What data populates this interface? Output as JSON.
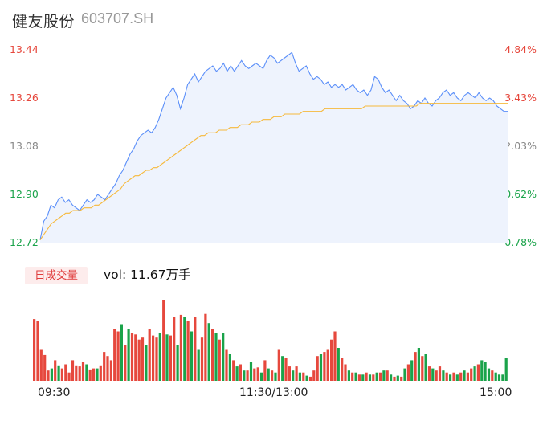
{
  "header": {
    "name": "健友股份",
    "code": "603707.SH"
  },
  "volume": {
    "tab_label": "日成交量",
    "vol_text": "vol: 11.67万手"
  },
  "colors": {
    "price_line": "#5b8ff9",
    "avg_line": "#f6b93b",
    "up": "#e6483d",
    "down": "#1aa34a",
    "neutral": "#888888",
    "area_fill": "#eef3fd"
  },
  "chart_data": [
    {
      "type": "line",
      "y_range": [
        12.72,
        13.44
      ],
      "pct_range": [
        -0.78,
        4.84
      ],
      "y_ticks": [
        {
          "price": "13.44",
          "pct": "4.84%",
          "dir": "up"
        },
        {
          "price": "13.26",
          "pct": "3.43%",
          "dir": "up"
        },
        {
          "price": "13.08",
          "pct": "2.03%",
          "dir": "neutral"
        },
        {
          "price": "12.90",
          "pct": "0.62%",
          "dir": "down"
        },
        {
          "price": "12.72",
          "pct": "-0.78%",
          "dir": "down"
        }
      ],
      "x_ticks": [
        "09:30",
        "11:30/13:00",
        "15:00"
      ],
      "series": [
        {
          "points": [
            12.73,
            12.8,
            12.82,
            12.86,
            12.85,
            12.88,
            12.89,
            12.87,
            12.88,
            12.86,
            12.85,
            12.84,
            12.86,
            12.88,
            12.87,
            12.88,
            12.9,
            12.89,
            12.88,
            12.9,
            12.92,
            12.94,
            12.97,
            12.99,
            13.02,
            13.05,
            13.07,
            13.1,
            13.12,
            13.13,
            13.14,
            13.13,
            13.15,
            13.18,
            13.22,
            13.26,
            13.28,
            13.3,
            13.27,
            13.22,
            13.26,
            13.31,
            13.33,
            13.35,
            13.32,
            13.34,
            13.36,
            13.37,
            13.38,
            13.36,
            13.37,
            13.39,
            13.36,
            13.38,
            13.36,
            13.38,
            13.4,
            13.38,
            13.37,
            13.38,
            13.39,
            13.38,
            13.37,
            13.4,
            13.42,
            13.41,
            13.39,
            13.4,
            13.41,
            13.42,
            13.43,
            13.39,
            13.36,
            13.37,
            13.38,
            13.35,
            13.33,
            13.34,
            13.33,
            13.31,
            13.32,
            13.3,
            13.31,
            13.3,
            13.31,
            13.29,
            13.3,
            13.31,
            13.29,
            13.28,
            13.29,
            13.27,
            13.29,
            13.34,
            13.33,
            13.3,
            13.28,
            13.29,
            13.27,
            13.25,
            13.27,
            13.25,
            13.24,
            13.22,
            13.23,
            13.25,
            13.24,
            13.26,
            13.24,
            13.23,
            13.25,
            13.26,
            13.28,
            13.29,
            13.27,
            13.28,
            13.26,
            13.25,
            13.27,
            13.28,
            13.27,
            13.26,
            13.28,
            13.26,
            13.25,
            13.26,
            13.25,
            13.23,
            13.22,
            13.21,
            13.21
          ]
        },
        {
          "points": [
            12.73,
            12.75,
            12.77,
            12.79,
            12.8,
            12.81,
            12.82,
            12.83,
            12.83,
            12.84,
            12.84,
            12.84,
            12.85,
            12.85,
            12.85,
            12.86,
            12.86,
            12.87,
            12.88,
            12.89,
            12.9,
            12.91,
            12.92,
            12.94,
            12.95,
            12.96,
            12.97,
            12.97,
            12.98,
            12.99,
            12.99,
            13.0,
            13.0,
            13.01,
            13.02,
            13.03,
            13.04,
            13.05,
            13.06,
            13.07,
            13.08,
            13.09,
            13.1,
            13.11,
            13.12,
            13.12,
            13.13,
            13.13,
            13.13,
            13.14,
            13.14,
            13.14,
            13.15,
            13.15,
            13.15,
            13.16,
            13.16,
            13.16,
            13.17,
            13.17,
            13.17,
            13.18,
            13.18,
            13.18,
            13.19,
            13.19,
            13.19,
            13.2,
            13.2,
            13.2,
            13.2,
            13.2,
            13.21,
            13.21,
            13.21,
            13.21,
            13.21,
            13.21,
            13.22,
            13.22,
            13.22,
            13.22,
            13.22,
            13.22,
            13.22,
            13.22,
            13.22,
            13.22,
            13.22,
            13.23,
            13.23,
            13.23,
            13.23,
            13.23,
            13.23,
            13.23,
            13.23,
            13.23,
            13.23,
            13.23,
            13.23,
            13.23,
            13.23,
            13.23,
            13.24,
            13.24,
            13.24,
            13.24,
            13.24,
            13.24,
            13.24,
            13.24,
            13.24,
            13.24,
            13.24,
            13.24,
            13.24,
            13.24,
            13.24,
            13.24,
            13.24,
            13.24,
            13.24,
            13.24,
            13.24,
            13.24,
            13.24,
            13.24,
            13.24
          ]
        }
      ]
    },
    {
      "type": "bar",
      "values": [
        60,
        58,
        30,
        25,
        10,
        12,
        20,
        15,
        12,
        16,
        8,
        20,
        15,
        14,
        18,
        16,
        11,
        12,
        12,
        15,
        28,
        24,
        20,
        50,
        48,
        55,
        35,
        50,
        46,
        45,
        40,
        42,
        35,
        50,
        44,
        42,
        46,
        78,
        45,
        44,
        62,
        35,
        64,
        62,
        58,
        48,
        62,
        30,
        42,
        65,
        56,
        50,
        46,
        40,
        46,
        30,
        26,
        20,
        14,
        16,
        10,
        10,
        18,
        12,
        13,
        8,
        20,
        12,
        10,
        8,
        30,
        24,
        22,
        14,
        10,
        14,
        8,
        8,
        5,
        4,
        10,
        24,
        26,
        28,
        30,
        40,
        48,
        32,
        22,
        16,
        10,
        8,
        8,
        6,
        6,
        8,
        6,
        6,
        8,
        8,
        10,
        10,
        6,
        4,
        5,
        4,
        12,
        16,
        20,
        28,
        32,
        24,
        26,
        14,
        12,
        10,
        14,
        10,
        8,
        6,
        8,
        6,
        8,
        10,
        8,
        12,
        14,
        16,
        20,
        18,
        12,
        10,
        8,
        6,
        6,
        22
      ],
      "colors": [
        "up",
        "up",
        "up",
        "up",
        "up",
        "down",
        "up",
        "down",
        "up",
        "up",
        "up",
        "up",
        "up",
        "up",
        "up",
        "down",
        "up",
        "up",
        "down",
        "up",
        "up",
        "up",
        "up",
        "up",
        "up",
        "down",
        "up",
        "down",
        "up",
        "up",
        "up",
        "up",
        "down",
        "up",
        "up",
        "up",
        "down",
        "up",
        "down",
        "up",
        "up",
        "down",
        "up",
        "down",
        "up",
        "down",
        "up",
        "down",
        "up",
        "up",
        "down",
        "up",
        "down",
        "up",
        "down",
        "up",
        "down",
        "up",
        "down",
        "up",
        "down",
        "up",
        "down",
        "up",
        "up",
        "down",
        "up",
        "down",
        "up",
        "down",
        "up",
        "down",
        "up",
        "up",
        "down",
        "up",
        "down",
        "up",
        "down",
        "up",
        "up",
        "up",
        "down",
        "up",
        "up",
        "up",
        "up",
        "down",
        "up",
        "up",
        "down",
        "up",
        "down",
        "up",
        "down",
        "up",
        "down",
        "up",
        "down",
        "up",
        "down",
        "up",
        "down",
        "up",
        "down",
        "up",
        "down",
        "up",
        "down",
        "up",
        "down",
        "up",
        "down",
        "up",
        "down",
        "up",
        "up",
        "down",
        "up",
        "down",
        "up",
        "down",
        "up",
        "down",
        "up",
        "up",
        "down",
        "up",
        "down",
        "down",
        "down",
        "up"
      ]
    }
  ]
}
